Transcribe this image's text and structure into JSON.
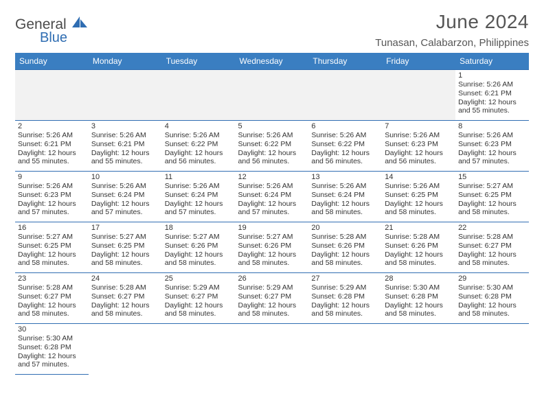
{
  "brand": {
    "name1": "General",
    "name2": "Blue",
    "sail_color": "#2f6db2"
  },
  "header": {
    "month_title": "June 2024",
    "location": "Tunasan, Calabarzon, Philippines"
  },
  "colors": {
    "header_bg": "#3a7ec1",
    "header_text": "#ffffff",
    "cell_border": "#2f6db2",
    "blank_bg": "#f2f2f2",
    "text": "#333333"
  },
  "typography": {
    "title_fontsize": 28,
    "location_fontsize": 15,
    "dayheader_fontsize": 12,
    "daynum_fontsize": 11,
    "body_fontsize": 10.5
  },
  "calendar": {
    "type": "table",
    "day_headers": [
      "Sunday",
      "Monday",
      "Tuesday",
      "Wednesday",
      "Thursday",
      "Friday",
      "Saturday"
    ],
    "first_weekday_index": 6,
    "days": [
      {
        "n": 1,
        "sunrise": "5:26 AM",
        "sunset": "6:21 PM",
        "daylight": "12 hours and 55 minutes."
      },
      {
        "n": 2,
        "sunrise": "5:26 AM",
        "sunset": "6:21 PM",
        "daylight": "12 hours and 55 minutes."
      },
      {
        "n": 3,
        "sunrise": "5:26 AM",
        "sunset": "6:21 PM",
        "daylight": "12 hours and 55 minutes."
      },
      {
        "n": 4,
        "sunrise": "5:26 AM",
        "sunset": "6:22 PM",
        "daylight": "12 hours and 56 minutes."
      },
      {
        "n": 5,
        "sunrise": "5:26 AM",
        "sunset": "6:22 PM",
        "daylight": "12 hours and 56 minutes."
      },
      {
        "n": 6,
        "sunrise": "5:26 AM",
        "sunset": "6:22 PM",
        "daylight": "12 hours and 56 minutes."
      },
      {
        "n": 7,
        "sunrise": "5:26 AM",
        "sunset": "6:23 PM",
        "daylight": "12 hours and 56 minutes."
      },
      {
        "n": 8,
        "sunrise": "5:26 AM",
        "sunset": "6:23 PM",
        "daylight": "12 hours and 57 minutes."
      },
      {
        "n": 9,
        "sunrise": "5:26 AM",
        "sunset": "6:23 PM",
        "daylight": "12 hours and 57 minutes."
      },
      {
        "n": 10,
        "sunrise": "5:26 AM",
        "sunset": "6:24 PM",
        "daylight": "12 hours and 57 minutes."
      },
      {
        "n": 11,
        "sunrise": "5:26 AM",
        "sunset": "6:24 PM",
        "daylight": "12 hours and 57 minutes."
      },
      {
        "n": 12,
        "sunrise": "5:26 AM",
        "sunset": "6:24 PM",
        "daylight": "12 hours and 57 minutes."
      },
      {
        "n": 13,
        "sunrise": "5:26 AM",
        "sunset": "6:24 PM",
        "daylight": "12 hours and 58 minutes."
      },
      {
        "n": 14,
        "sunrise": "5:26 AM",
        "sunset": "6:25 PM",
        "daylight": "12 hours and 58 minutes."
      },
      {
        "n": 15,
        "sunrise": "5:27 AM",
        "sunset": "6:25 PM",
        "daylight": "12 hours and 58 minutes."
      },
      {
        "n": 16,
        "sunrise": "5:27 AM",
        "sunset": "6:25 PM",
        "daylight": "12 hours and 58 minutes."
      },
      {
        "n": 17,
        "sunrise": "5:27 AM",
        "sunset": "6:25 PM",
        "daylight": "12 hours and 58 minutes."
      },
      {
        "n": 18,
        "sunrise": "5:27 AM",
        "sunset": "6:26 PM",
        "daylight": "12 hours and 58 minutes."
      },
      {
        "n": 19,
        "sunrise": "5:27 AM",
        "sunset": "6:26 PM",
        "daylight": "12 hours and 58 minutes."
      },
      {
        "n": 20,
        "sunrise": "5:28 AM",
        "sunset": "6:26 PM",
        "daylight": "12 hours and 58 minutes."
      },
      {
        "n": 21,
        "sunrise": "5:28 AM",
        "sunset": "6:26 PM",
        "daylight": "12 hours and 58 minutes."
      },
      {
        "n": 22,
        "sunrise": "5:28 AM",
        "sunset": "6:27 PM",
        "daylight": "12 hours and 58 minutes."
      },
      {
        "n": 23,
        "sunrise": "5:28 AM",
        "sunset": "6:27 PM",
        "daylight": "12 hours and 58 minutes."
      },
      {
        "n": 24,
        "sunrise": "5:28 AM",
        "sunset": "6:27 PM",
        "daylight": "12 hours and 58 minutes."
      },
      {
        "n": 25,
        "sunrise": "5:29 AM",
        "sunset": "6:27 PM",
        "daylight": "12 hours and 58 minutes."
      },
      {
        "n": 26,
        "sunrise": "5:29 AM",
        "sunset": "6:27 PM",
        "daylight": "12 hours and 58 minutes."
      },
      {
        "n": 27,
        "sunrise": "5:29 AM",
        "sunset": "6:28 PM",
        "daylight": "12 hours and 58 minutes."
      },
      {
        "n": 28,
        "sunrise": "5:30 AM",
        "sunset": "6:28 PM",
        "daylight": "12 hours and 58 minutes."
      },
      {
        "n": 29,
        "sunrise": "5:30 AM",
        "sunset": "6:28 PM",
        "daylight": "12 hours and 58 minutes."
      },
      {
        "n": 30,
        "sunrise": "5:30 AM",
        "sunset": "6:28 PM",
        "daylight": "12 hours and 57 minutes."
      }
    ],
    "labels": {
      "sunrise_prefix": "Sunrise: ",
      "sunset_prefix": "Sunset: ",
      "daylight_prefix": "Daylight: "
    }
  }
}
